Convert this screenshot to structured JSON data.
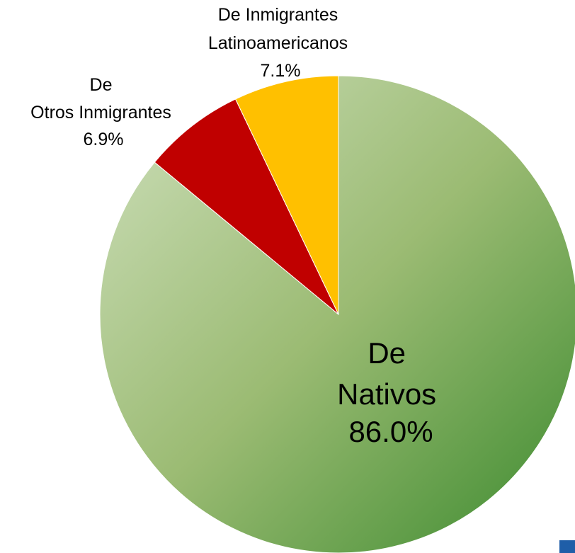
{
  "chart_data": {
    "type": "pie",
    "slices": [
      {
        "name": "De Nativos",
        "label_lines": [
          "De",
          "Nativos",
          "86.0%"
        ],
        "value": 86.0,
        "color": "#5f9a3f"
      },
      {
        "name": "De Otros Inmigrantes",
        "label_lines": [
          "De",
          "Otros Inmigrantes",
          "6.9%"
        ],
        "value": 6.9,
        "color": "#c00000"
      },
      {
        "name": "De Inmigrantes Latinoamericanos",
        "label_lines": [
          "De Inmigrantes",
          "Latinoamericanos",
          "7.1%"
        ],
        "value": 7.1,
        "color": "#ffc000"
      }
    ],
    "start_angle_deg": 0,
    "direction": "clockwise",
    "legend": "none"
  },
  "colors": {
    "native_gradient_light": "#cfe0bd",
    "native_gradient_mid": "#9bbb73",
    "native_gradient_dark": "#3b8a2e",
    "corner_mark": "#1f5ea8"
  }
}
